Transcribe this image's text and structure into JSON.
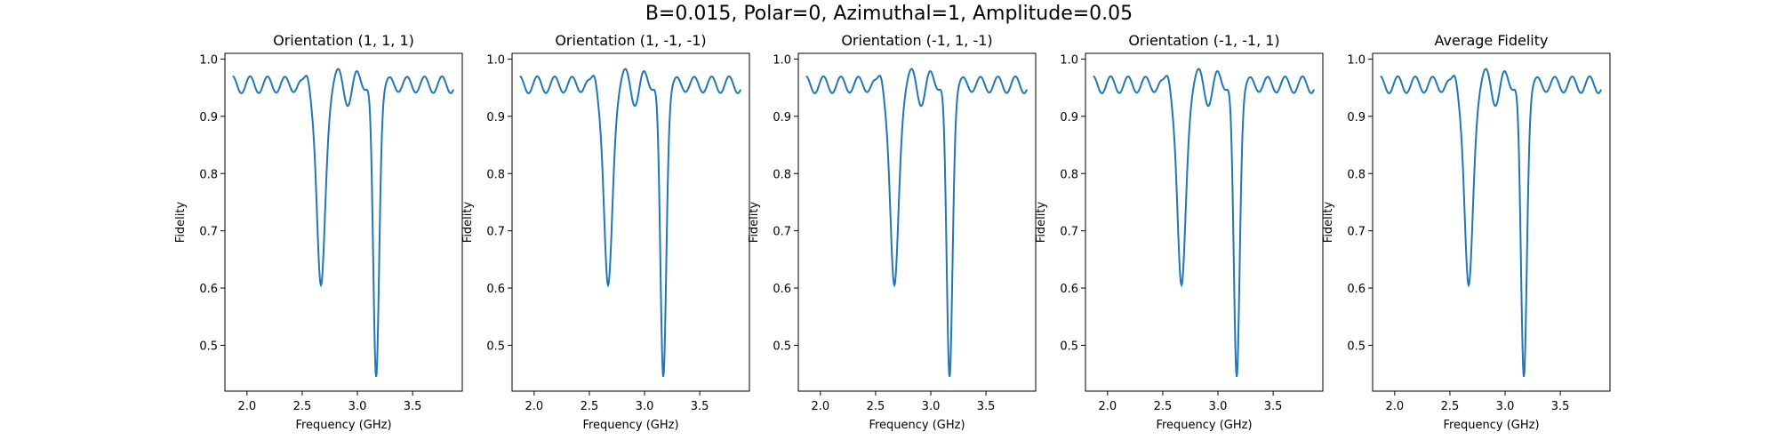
{
  "suptitle": "B=0.015, Polar=0, Azimuthal=1, Amplitude=0.05",
  "style": {
    "line_color": "#1f77b4",
    "axes_color": "#000000"
  },
  "chart_data": [
    {
      "type": "line",
      "title": "Orientation (1, 1, 1)",
      "xlabel": "Frequency (GHz)",
      "ylabel": "Fidelity",
      "xlim": [
        1.8,
        3.95
      ],
      "ylim": [
        0.42,
        1.01
      ],
      "xticks": [
        "2.0",
        "2.5",
        "3.0",
        "3.5"
      ],
      "yticks": [
        "0.5",
        "0.6",
        "0.7",
        "0.8",
        "0.9",
        "1.0"
      ],
      "grid": false,
      "series": [
        {
          "x": [
            1.87,
            3.87
          ],
          "description_of_shape": "",
          "dips": [
            {
              "x": 2.67,
              "y": 0.605
            },
            {
              "x": 3.17,
              "y": 0.445
            }
          ]
        }
      ]
    },
    {
      "type": "line",
      "title": "Orientation (1, -1, -1)",
      "xlabel": "Frequency (GHz)",
      "ylabel": "Fidelity",
      "xlim": [
        1.8,
        3.95
      ],
      "ylim": [
        0.42,
        1.01
      ],
      "xticks": [
        "2.0",
        "2.5",
        "3.0",
        "3.5"
      ],
      "yticks": [
        "0.5",
        "0.6",
        "0.7",
        "0.8",
        "0.9",
        "1.0"
      ],
      "grid": false,
      "series": [
        {
          "x": [
            1.87,
            3.87
          ],
          "dips": [
            {
              "x": 2.67,
              "y": 0.605
            },
            {
              "x": 3.17,
              "y": 0.445
            }
          ]
        }
      ]
    },
    {
      "type": "line",
      "title": "Orientation (-1, 1, -1)",
      "xlabel": "Frequency (GHz)",
      "ylabel": "Fidelity",
      "xlim": [
        1.8,
        3.95
      ],
      "ylim": [
        0.42,
        1.01
      ],
      "xticks": [
        "2.0",
        "2.5",
        "3.0",
        "3.5"
      ],
      "yticks": [
        "0.5",
        "0.6",
        "0.7",
        "0.8",
        "0.9",
        "1.0"
      ],
      "grid": false,
      "series": [
        {
          "x": [
            1.87,
            3.87
          ],
          "dips": [
            {
              "x": 2.67,
              "y": 0.605
            },
            {
              "x": 3.17,
              "y": 0.445
            }
          ]
        }
      ]
    },
    {
      "type": "line",
      "title": "Orientation (-1, -1, 1)",
      "xlabel": "Frequency (GHz)",
      "ylabel": "Fidelity",
      "xlim": [
        1.8,
        3.95
      ],
      "ylim": [
        0.42,
        1.01
      ],
      "xticks": [
        "2.0",
        "2.5",
        "3.0",
        "3.5"
      ],
      "yticks": [
        "0.5",
        "0.6",
        "0.7",
        "0.8",
        "0.9",
        "1.0"
      ],
      "grid": false,
      "series": [
        {
          "x": [
            1.87,
            3.87
          ],
          "dips": [
            {
              "x": 2.67,
              "y": 0.605
            },
            {
              "x": 3.17,
              "y": 0.445
            }
          ]
        }
      ]
    },
    {
      "type": "line",
      "title": "Average Fidelity",
      "xlabel": "Frequency (GHz)",
      "ylabel": "Fidelity",
      "xlim": [
        1.8,
        3.95
      ],
      "ylim": [
        0.42,
        1.01
      ],
      "xticks": [
        "2.0",
        "2.5",
        "3.0",
        "3.5"
      ],
      "yticks": [
        "0.5",
        "0.6",
        "0.7",
        "0.8",
        "0.9",
        "1.0"
      ],
      "grid": false,
      "series": [
        {
          "x": [
            1.87,
            3.87
          ],
          "dips": [
            {
              "x": 2.67,
              "y": 0.605
            },
            {
              "x": 3.17,
              "y": 0.445
            }
          ]
        }
      ]
    }
  ]
}
